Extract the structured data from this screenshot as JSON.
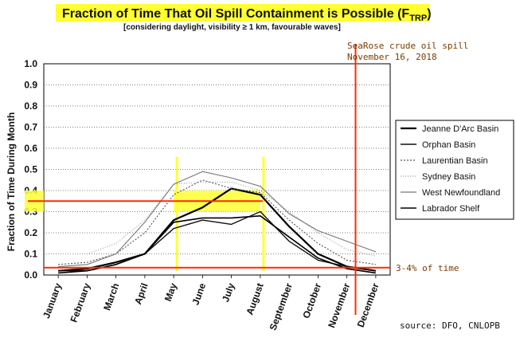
{
  "chart_data": {
    "type": "line",
    "title": "Fraction of Time That Oil Spill Containment is Possible (F",
    "title_subscript": "TRP",
    "title_close": ")",
    "subtitle": "[considering daylight, visibility ≥ 1 km, favourable waves]",
    "xlabel": "",
    "ylabel": "Fraction of Time During Month",
    "ylim": [
      0,
      1.0
    ],
    "yticks": [
      "0.0",
      "0.1",
      "0.2",
      "0.3",
      "0.4",
      "0.5",
      "0.6",
      "0.7",
      "0.8",
      "0.9",
      "1.0"
    ],
    "categories": [
      "January",
      "February",
      "March",
      "April",
      "May",
      "June",
      "July",
      "August",
      "September",
      "October",
      "November",
      "December"
    ],
    "grid": true,
    "legend_position": "right",
    "series": [
      {
        "name": "Jeanne D'Arc Basin",
        "color": "#000000",
        "dash": "",
        "width": 2.2,
        "values": [
          0.02,
          0.03,
          0.06,
          0.1,
          0.26,
          0.32,
          0.41,
          0.38,
          0.23,
          0.1,
          0.04,
          0.02
        ]
      },
      {
        "name": "Orphan Basin",
        "color": "#111111",
        "dash": "",
        "width": 1.4,
        "values": [
          0.02,
          0.02,
          0.05,
          0.1,
          0.22,
          0.26,
          0.24,
          0.3,
          0.16,
          0.07,
          0.04,
          0.02
        ]
      },
      {
        "name": "Laurentian Basin",
        "color": "#555555",
        "dash": "2,2",
        "width": 1.1,
        "values": [
          0.05,
          0.06,
          0.1,
          0.2,
          0.38,
          0.45,
          0.41,
          0.39,
          0.26,
          0.15,
          0.07,
          0.05
        ]
      },
      {
        "name": "Sydney Basin",
        "color": "#9a9a9a",
        "dash": "1,2",
        "width": 1.1,
        "values": [
          0.1,
          0.1,
          0.15,
          0.26,
          0.43,
          0.44,
          0.44,
          0.4,
          0.3,
          0.2,
          0.12,
          0.09
        ]
      },
      {
        "name": "West Newfoundland",
        "color": "#777777",
        "dash": "",
        "width": 1.1,
        "values": [
          0.04,
          0.05,
          0.1,
          0.25,
          0.43,
          0.49,
          0.46,
          0.42,
          0.29,
          0.21,
          0.16,
          0.11
        ]
      },
      {
        "name": "Labrador Shelf",
        "color": "#000000",
        "dash": "",
        "width": 1.6,
        "values": [
          0.01,
          0.02,
          0.05,
          0.1,
          0.25,
          0.27,
          0.27,
          0.28,
          0.18,
          0.08,
          0.03,
          0.01
        ]
      }
    ],
    "annotations": {
      "spill_label_line1": "SeaRose crude oil spill",
      "spill_label_line2": "November 16, 2018",
      "spill_month_value": 10.8,
      "threshold_value": 0.035,
      "threshold_label": "3-4% of time",
      "band_value": 0.35,
      "band_low": 0.3,
      "band_high": 0.4,
      "band_from_month": "May",
      "band_to_month": "August"
    },
    "source": "source: DFO, CNLOPB",
    "colors": {
      "highlight": "#ffff33",
      "marker_lines": "#ff2a00",
      "annotation_text": "#7a3b00"
    }
  }
}
